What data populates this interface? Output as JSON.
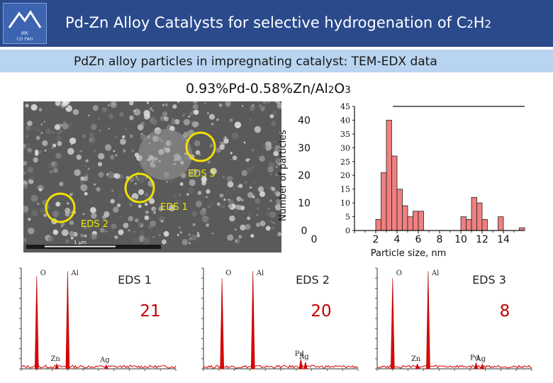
{
  "header": {
    "title_main": "Pd-Zn Alloy Catalysts for selective hydrogenation of C",
    "title_sub1": "2",
    "title_h": "H",
    "title_sub2": "2",
    "logo_text_line1": "ИК",
    "logo_text_line2": "СО РАН"
  },
  "subtitle": "PdZn alloy particles in impregnating catalyst: TEM-EDX data",
  "sample": {
    "text_a": "0.93%Pd-0.58%Zn/Al",
    "sub_a": "2",
    "text_b": "O",
    "sub_b": "3"
  },
  "tem": {
    "scale_label": "1 μm",
    "regions": [
      {
        "label": "EDS 1"
      },
      {
        "label": "EDS 2"
      },
      {
        "label": "EDS 3"
      }
    ]
  },
  "chart_data": {
    "type": "bar",
    "title": "",
    "xlabel": "Particle size, nm",
    "ylabel": "Number of particles",
    "xlim": [
      0,
      16
    ],
    "ylim": [
      0,
      45
    ],
    "ytick_labels_outer": [
      "0",
      "10",
      "20",
      "30",
      "40"
    ],
    "ytick_labels_inner": [
      "0",
      "5",
      "10",
      "15",
      "20",
      "25",
      "30",
      "35",
      "40",
      "45"
    ],
    "xtick_labels": [
      "0",
      "2",
      "4",
      "6",
      "8",
      "10",
      "12",
      "14"
    ],
    "bin_width": 0.5,
    "bins": [
      {
        "x": 2.0,
        "value": 4
      },
      {
        "x": 2.5,
        "value": 21
      },
      {
        "x": 3.0,
        "value": 40
      },
      {
        "x": 3.5,
        "value": 27
      },
      {
        "x": 4.0,
        "value": 15
      },
      {
        "x": 4.5,
        "value": 9
      },
      {
        "x": 5.0,
        "value": 5
      },
      {
        "x": 5.5,
        "value": 7
      },
      {
        "x": 6.0,
        "value": 7
      },
      {
        "x": 6.5,
        "value": 0
      },
      {
        "x": 7.0,
        "value": 0
      },
      {
        "x": 7.5,
        "value": 0
      },
      {
        "x": 8.0,
        "value": 0
      },
      {
        "x": 8.5,
        "value": 0
      },
      {
        "x": 9.0,
        "value": 0
      },
      {
        "x": 9.5,
        "value": 0
      },
      {
        "x": 10.0,
        "value": 5
      },
      {
        "x": 10.5,
        "value": 4
      },
      {
        "x": 11.0,
        "value": 12
      },
      {
        "x": 11.5,
        "value": 10
      },
      {
        "x": 12.0,
        "value": 4
      },
      {
        "x": 12.5,
        "value": 0
      },
      {
        "x": 13.0,
        "value": 0
      },
      {
        "x": 13.5,
        "value": 5
      },
      {
        "x": 14.0,
        "value": 0
      },
      {
        "x": 14.5,
        "value": 0
      },
      {
        "x": 15.0,
        "value": 0
      },
      {
        "x": 15.5,
        "value": 1
      }
    ],
    "grid": false,
    "legend": "none",
    "bar_color": "#f08080"
  },
  "eds_spectra": [
    {
      "caption": "EDS 1",
      "count": "21",
      "peaks": [
        {
          "label": "O",
          "pos": 0.1,
          "height": 0.92
        },
        {
          "label": "Al",
          "pos": 0.3,
          "height": 0.97
        },
        {
          "label": "Zn",
          "pos": 0.23,
          "height": 0.05
        },
        {
          "label": "Ag",
          "pos": 0.55,
          "height": 0.04
        }
      ]
    },
    {
      "caption": "EDS 2",
      "count": "20",
      "peaks": [
        {
          "label": "O",
          "pos": 0.12,
          "height": 0.9
        },
        {
          "label": "Al",
          "pos": 0.32,
          "height": 0.97
        },
        {
          "label": "Pd",
          "pos": 0.63,
          "height": 0.1
        },
        {
          "label": "Ag",
          "pos": 0.66,
          "height": 0.07
        }
      ]
    },
    {
      "caption": "EDS 3",
      "count": "8",
      "peaks": [
        {
          "label": "O",
          "pos": 0.1,
          "height": 0.9
        },
        {
          "label": "Al",
          "pos": 0.33,
          "height": 0.97
        },
        {
          "label": "Zn",
          "pos": 0.26,
          "height": 0.05
        },
        {
          "label": "Pd",
          "pos": 0.64,
          "height": 0.06
        },
        {
          "label": "Ag",
          "pos": 0.68,
          "height": 0.05
        }
      ]
    }
  ]
}
